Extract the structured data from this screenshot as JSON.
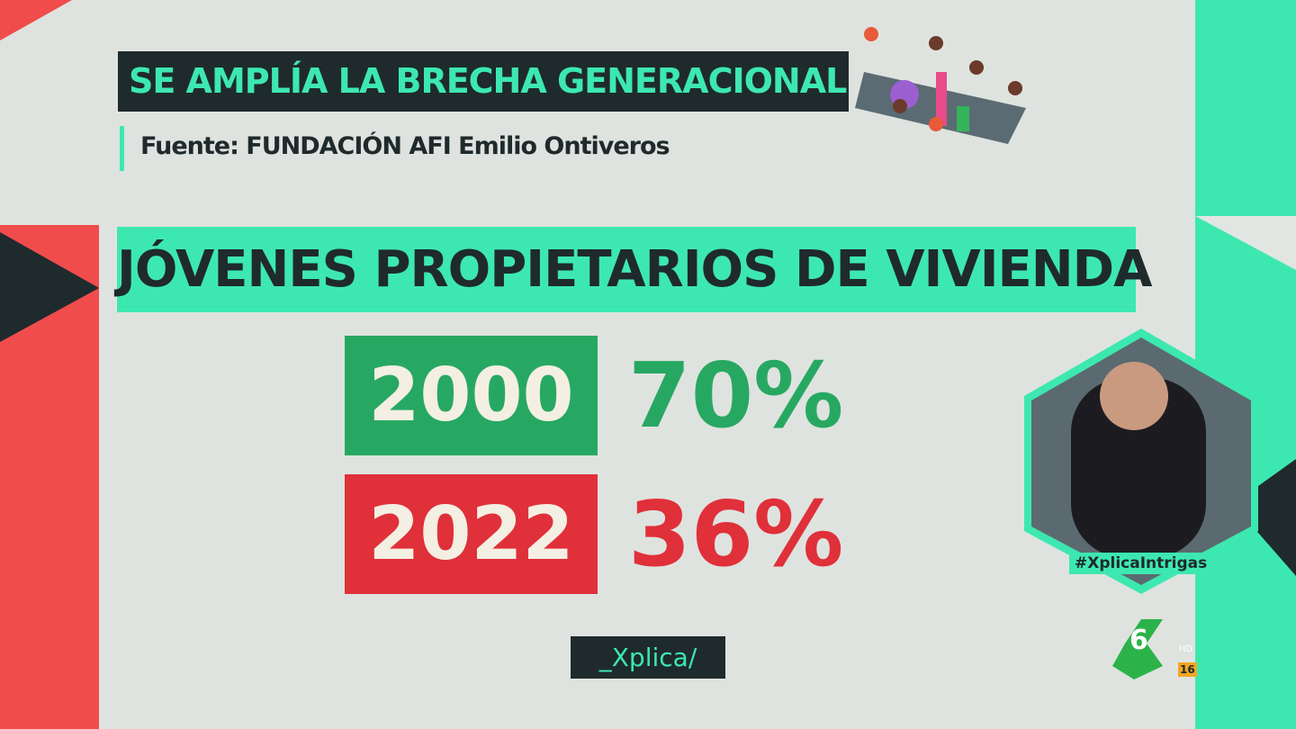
{
  "header": {
    "title": "SE AMPLÍA LA BRECHA GENERACIONAL",
    "source": "Fuente: FUNDACIÓN AFI Emilio Ontiveros"
  },
  "panel": {
    "title": "JÓVENES PROPIETARIOS DE VIVIENDA",
    "rows": [
      {
        "year": "2000",
        "value": "70%"
      },
      {
        "year": "2022",
        "value": "36%"
      }
    ]
  },
  "hashtag": "#XplicaIntrigas",
  "program": "_Xplica/",
  "channel": {
    "logo": "6",
    "badge": "HD",
    "rating": "16"
  }
}
